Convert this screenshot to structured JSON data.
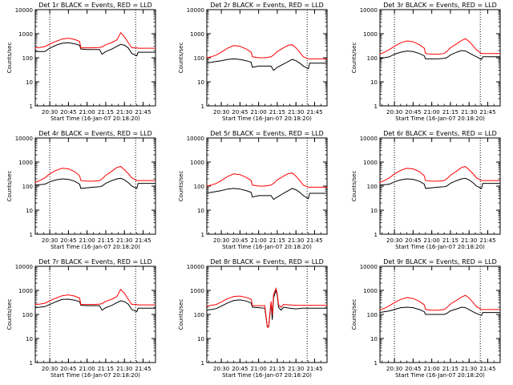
{
  "figure": {
    "panel_ylabel": "Counts/sec",
    "panel_xlabel": "Start Time (16-Jan-07 20:18:20)",
    "x_tick_labels": [
      "20:30",
      "20:45",
      "21:00",
      "21:15",
      "21:30",
      "21:45"
    ],
    "y_tick_labels": [
      "1",
      "10",
      "100",
      "1000",
      "10000"
    ],
    "colors": {
      "events": "#000000",
      "lld": "#ff0000",
      "frame": "#000000",
      "background": "#ffffff"
    }
  },
  "chart_data": [
    {
      "type": "line",
      "title": "Det 1r BLACK = Events, RED = LLD",
      "xlabel": "Start Time (16-Jan-07 20:18:20)",
      "ylabel": "Counts/sec",
      "yscale": "log",
      "ylim": [
        1,
        10000
      ],
      "xlim": [
        "20:18:20",
        "21:55"
      ],
      "dotted_vlines": [
        "20:30",
        "21:39"
      ],
      "legend": "none",
      "x": [
        "20:18",
        "20:22",
        "20:26",
        "20:30",
        "20:35",
        "20:40",
        "20:45",
        "20:50",
        "20:54",
        "20:55",
        "21:00",
        "21:05",
        "21:10",
        "21:12",
        "21:15",
        "21:20",
        "21:24",
        "21:27",
        "21:30",
        "21:33",
        "21:36",
        "21:40",
        "21:41",
        "21:45",
        "21:50",
        "21:55"
      ],
      "series": [
        {
          "name": "Events",
          "values": [
            180,
            180,
            180,
            250,
            330,
            400,
            420,
            380,
            330,
            230,
            220,
            220,
            220,
            140,
            180,
            230,
            300,
            360,
            330,
            260,
            150,
            120,
            170,
            170,
            170,
            170
          ]
        },
        {
          "name": "LLD",
          "values": [
            260,
            270,
            290,
            370,
            480,
            600,
            650,
            580,
            480,
            260,
            260,
            260,
            270,
            280,
            350,
            430,
            560,
            1100,
            750,
            430,
            260,
            260,
            250,
            250,
            250,
            250
          ]
        }
      ]
    },
    {
      "type": "line",
      "title": "Det 2r BLACK = Events, RED = LLD",
      "xlabel": "Start Time (16-Jan-07 20:18:20)",
      "ylabel": "Counts/sec",
      "yscale": "log",
      "ylim": [
        1,
        10000
      ],
      "xlim": [
        "20:18:20",
        "21:55"
      ],
      "dotted_vlines": [
        "21:39"
      ],
      "legend": "none",
      "x": [
        "20:18",
        "20:22",
        "20:26",
        "20:30",
        "20:35",
        "20:40",
        "20:45",
        "20:50",
        "20:54",
        "20:55",
        "21:00",
        "21:05",
        "21:10",
        "21:12",
        "21:15",
        "21:20",
        "21:24",
        "21:27",
        "21:30",
        "21:33",
        "21:36",
        "21:40",
        "21:41",
        "21:45",
        "21:50",
        "21:55"
      ],
      "series": [
        {
          "name": "Events",
          "values": [
            60,
            65,
            70,
            75,
            85,
            90,
            85,
            75,
            65,
            40,
            45,
            45,
            45,
            30,
            40,
            55,
            70,
            85,
            75,
            60,
            45,
            35,
            60,
            60,
            60,
            60
          ]
        },
        {
          "name": "LLD",
          "values": [
            100,
            110,
            130,
            170,
            250,
            320,
            300,
            230,
            170,
            110,
            100,
            100,
            110,
            130,
            180,
            260,
            330,
            350,
            260,
            170,
            110,
            90,
            90,
            90,
            90,
            90
          ]
        }
      ]
    },
    {
      "type": "line",
      "title": "Det 3r BLACK = Events, RED = LLD",
      "xlabel": "Start Time (16-Jan-07 20:18:20)",
      "ylabel": "Counts/sec",
      "yscale": "log",
      "ylim": [
        1,
        10000
      ],
      "xlim": [
        "20:18:20",
        "21:55"
      ],
      "dotted_vlines": [
        "20:30",
        "21:39"
      ],
      "legend": "none",
      "x": [
        "20:18",
        "20:22",
        "20:26",
        "20:30",
        "20:35",
        "20:40",
        "20:45",
        "20:50",
        "20:54",
        "20:55",
        "21:00",
        "21:05",
        "21:10",
        "21:12",
        "21:15",
        "21:20",
        "21:24",
        "21:27",
        "21:30",
        "21:33",
        "21:36",
        "21:40",
        "21:41",
        "21:45",
        "21:50",
        "21:55"
      ],
      "series": [
        {
          "name": "Events",
          "values": [
            90,
            100,
            110,
            140,
            170,
            190,
            180,
            150,
            120,
            90,
            90,
            90,
            95,
            100,
            130,
            170,
            200,
            190,
            160,
            130,
            110,
            85,
            110,
            110,
            110,
            110
          ]
        },
        {
          "name": "LLD",
          "values": [
            140,
            170,
            220,
            300,
            420,
            500,
            460,
            350,
            250,
            150,
            140,
            140,
            150,
            180,
            260,
            380,
            520,
            620,
            480,
            320,
            210,
            150,
            150,
            150,
            150,
            150
          ]
        }
      ]
    },
    {
      "type": "line",
      "title": "Det 4r BLACK = Events, RED = LLD",
      "xlabel": "Start Time (16-Jan-07 20:18:20)",
      "ylabel": "Counts/sec",
      "yscale": "log",
      "ylim": [
        1,
        10000
      ],
      "xlim": [
        "20:18:20",
        "21:55"
      ],
      "dotted_vlines": [
        "20:30",
        "21:39"
      ],
      "legend": "none",
      "x": [
        "20:18",
        "20:22",
        "20:26",
        "20:30",
        "20:35",
        "20:40",
        "20:45",
        "20:50",
        "20:54",
        "20:55",
        "21:00",
        "21:05",
        "21:10",
        "21:12",
        "21:15",
        "21:20",
        "21:24",
        "21:27",
        "21:30",
        "21:33",
        "21:36",
        "21:40",
        "21:41",
        "21:45",
        "21:50",
        "21:55"
      ],
      "series": [
        {
          "name": "Events",
          "values": [
            110,
            115,
            120,
            150,
            180,
            200,
            190,
            160,
            120,
            80,
            85,
            90,
            95,
            100,
            130,
            170,
            200,
            210,
            180,
            140,
            100,
            80,
            130,
            130,
            130,
            130
          ]
        },
        {
          "name": "LLD",
          "values": [
            140,
            170,
            220,
            320,
            450,
            550,
            520,
            400,
            270,
            170,
            160,
            160,
            170,
            200,
            280,
            420,
            600,
            650,
            480,
            330,
            220,
            170,
            170,
            170,
            170,
            170
          ]
        }
      ]
    },
    {
      "type": "line",
      "title": "Det 5r BLACK = Events, RED = LLD",
      "xlabel": "Start Time (16-Jan-07 20:18:20)",
      "ylabel": "Counts/sec",
      "yscale": "log",
      "ylim": [
        1,
        10000
      ],
      "xlim": [
        "20:18:20",
        "21:55"
      ],
      "dotted_vlines": [
        "21:39"
      ],
      "legend": "none",
      "x": [
        "20:18",
        "20:22",
        "20:26",
        "20:30",
        "20:35",
        "20:40",
        "20:45",
        "20:50",
        "20:54",
        "20:55",
        "21:00",
        "21:05",
        "21:10",
        "21:12",
        "21:15",
        "21:20",
        "21:24",
        "21:27",
        "21:30",
        "21:33",
        "21:36",
        "21:40",
        "21:41",
        "21:45",
        "21:50",
        "21:55"
      ],
      "series": [
        {
          "name": "Events",
          "values": [
            50,
            55,
            60,
            65,
            75,
            80,
            75,
            65,
            55,
            35,
            40,
            40,
            40,
            28,
            35,
            50,
            65,
            80,
            70,
            55,
            40,
            30,
            50,
            50,
            50,
            50
          ]
        },
        {
          "name": "LLD",
          "values": [
            100,
            110,
            130,
            170,
            250,
            320,
            300,
            230,
            170,
            110,
            100,
            100,
            110,
            130,
            180,
            260,
            330,
            350,
            260,
            170,
            110,
            90,
            90,
            90,
            90,
            90
          ]
        }
      ]
    },
    {
      "type": "line",
      "title": "Det 6r BLACK = Events, RED = LLD",
      "xlabel": "Start Time (16-Jan-07 20:18:20)",
      "ylabel": "Counts/sec",
      "yscale": "log",
      "ylim": [
        1,
        10000
      ],
      "xlim": [
        "20:18:20",
        "21:55"
      ],
      "dotted_vlines": [
        "20:30",
        "21:39"
      ],
      "legend": "none",
      "x": [
        "20:18",
        "20:22",
        "20:26",
        "20:30",
        "20:35",
        "20:40",
        "20:45",
        "20:50",
        "20:54",
        "20:55",
        "21:00",
        "21:05",
        "21:10",
        "21:12",
        "21:15",
        "21:20",
        "21:24",
        "21:27",
        "21:30",
        "21:33",
        "21:36",
        "21:40",
        "21:41",
        "21:45",
        "21:50",
        "21:55"
      ],
      "series": [
        {
          "name": "Events",
          "values": [
            110,
            115,
            120,
            150,
            180,
            200,
            190,
            160,
            120,
            80,
            85,
            90,
            95,
            100,
            130,
            170,
            200,
            210,
            180,
            140,
            100,
            80,
            130,
            130,
            130,
            130
          ]
        },
        {
          "name": "LLD",
          "values": [
            140,
            170,
            220,
            320,
            450,
            550,
            520,
            400,
            270,
            170,
            160,
            160,
            170,
            200,
            280,
            420,
            600,
            650,
            480,
            330,
            220,
            170,
            170,
            170,
            170,
            170
          ]
        }
      ]
    },
    {
      "type": "line",
      "title": "Det 7r BLACK = Events, RED = LLD",
      "xlabel": "Start Time (16-Jan-07 20:18:20)",
      "ylabel": "Counts/sec",
      "yscale": "log",
      "ylim": [
        1,
        10000
      ],
      "xlim": [
        "20:18:20",
        "21:55"
      ],
      "dotted_vlines": [
        "20:30",
        "21:39"
      ],
      "legend": "none",
      "x": [
        "20:18",
        "20:22",
        "20:26",
        "20:30",
        "20:35",
        "20:40",
        "20:45",
        "20:50",
        "20:54",
        "20:55",
        "21:00",
        "21:05",
        "21:10",
        "21:12",
        "21:15",
        "21:20",
        "21:24",
        "21:27",
        "21:30",
        "21:33",
        "21:36",
        "21:40",
        "21:41",
        "21:45",
        "21:50",
        "21:55"
      ],
      "series": [
        {
          "name": "Events",
          "values": [
            190,
            200,
            210,
            260,
            340,
            420,
            430,
            390,
            340,
            240,
            230,
            230,
            230,
            150,
            190,
            240,
            310,
            370,
            340,
            270,
            160,
            130,
            180,
            180,
            180,
            180
          ]
        },
        {
          "name": "LLD",
          "values": [
            260,
            270,
            290,
            370,
            480,
            600,
            650,
            580,
            480,
            260,
            260,
            260,
            270,
            280,
            350,
            430,
            560,
            1100,
            750,
            430,
            260,
            260,
            250,
            250,
            250,
            250
          ]
        }
      ]
    },
    {
      "type": "line",
      "title": "Det 8r BLACK = Events, RED = LLD",
      "xlabel": "Start Time (16-Jan-07 20:18:20)",
      "ylabel": "Counts/sec",
      "yscale": "log",
      "ylim": [
        1,
        10000
      ],
      "xlim": [
        "20:18:20",
        "21:55"
      ],
      "dotted_vlines": [
        "21:39"
      ],
      "legend": "none",
      "x": [
        "20:18",
        "20:22",
        "20:26",
        "20:30",
        "20:35",
        "20:40",
        "20:45",
        "20:50",
        "20:54",
        "20:55",
        "21:00",
        "21:05",
        "21:07",
        "21:08",
        "21:10",
        "21:11",
        "21:12",
        "21:14",
        "21:15",
        "21:16",
        "21:18",
        "21:20",
        "21:25",
        "21:30",
        "21:35",
        "21:40",
        "21:45",
        "21:50",
        "21:55"
      ],
      "series": [
        {
          "name": "Events",
          "values": [
            150,
            160,
            175,
            220,
            300,
            380,
            400,
            360,
            300,
            200,
            190,
            180,
            30,
            30,
            300,
            60,
            500,
            1000,
            600,
            200,
            150,
            200,
            180,
            170,
            180,
            180,
            180,
            180,
            180
          ]
        },
        {
          "name": "LLD",
          "values": [
            220,
            240,
            260,
            330,
            450,
            560,
            580,
            510,
            430,
            230,
            230,
            230,
            30,
            30,
            350,
            100,
            700,
            1200,
            700,
            250,
            200,
            260,
            250,
            240,
            240,
            240,
            240,
            240,
            240
          ]
        }
      ]
    },
    {
      "type": "line",
      "title": "Det 9r BLACK = Events, RED = LLD",
      "xlabel": "Start Time (16-Jan-07 20:18:20)",
      "ylabel": "Counts/sec",
      "yscale": "log",
      "ylim": [
        1,
        10000
      ],
      "xlim": [
        "20:18:20",
        "21:55"
      ],
      "dotted_vlines": [
        "20:30",
        "21:39"
      ],
      "legend": "none",
      "x": [
        "20:18",
        "20:22",
        "20:26",
        "20:30",
        "20:35",
        "20:40",
        "20:45",
        "20:50",
        "20:54",
        "20:55",
        "21:00",
        "21:05",
        "21:10",
        "21:12",
        "21:15",
        "21:20",
        "21:24",
        "21:27",
        "21:30",
        "21:33",
        "21:36",
        "21:40",
        "21:41",
        "21:45",
        "21:50",
        "21:55"
      ],
      "series": [
        {
          "name": "Events",
          "values": [
            120,
            130,
            140,
            160,
            190,
            200,
            190,
            160,
            130,
            100,
            100,
            100,
            100,
            110,
            140,
            170,
            200,
            190,
            160,
            130,
            110,
            90,
            120,
            120,
            120,
            120
          ]
        },
        {
          "name": "LLD",
          "values": [
            150,
            180,
            230,
            310,
            420,
            500,
            460,
            350,
            250,
            160,
            150,
            150,
            160,
            190,
            270,
            390,
            530,
            620,
            480,
            320,
            210,
            160,
            160,
            160,
            160,
            160
          ]
        }
      ]
    }
  ]
}
